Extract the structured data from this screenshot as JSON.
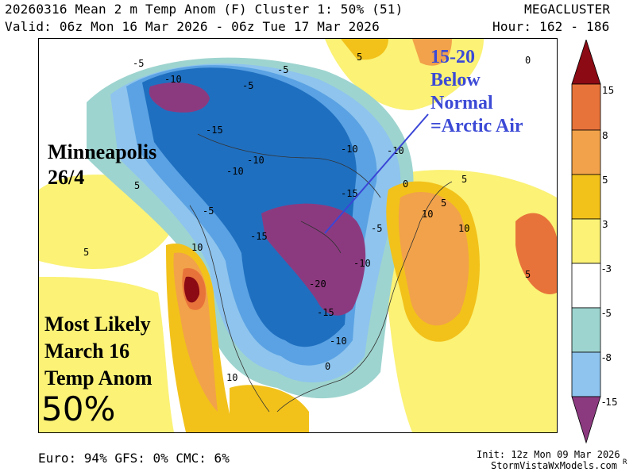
{
  "header": {
    "title_line": "20260316 Mean 2 m Temp Anom (F) Cluster 1: 50% (51)",
    "brand": "MEGACLUSTER",
    "valid_line": "Valid: 06z Mon 16 Mar 2026 - 06z Tue 17 Mar 2026",
    "hour_line": "Hour: 162 - 186"
  },
  "annotations": {
    "arrow_note_line1": "15-20",
    "arrow_note_line2": "Below",
    "arrow_note_line3": "Normal",
    "arrow_note_line4": "=Arctic Air",
    "city_line1": "Minneapolis",
    "city_line2": "26/4",
    "caption_line1": "Most Likely",
    "caption_line2": "March 16",
    "caption_line3": "Temp Anom",
    "probability": "50%"
  },
  "contour_labels": [
    "-5",
    "0",
    "-5",
    "-5",
    "-10",
    "-15",
    "-10",
    "-10",
    "-15",
    "-10",
    "-10",
    "5",
    "-5",
    "0",
    "5",
    "-15",
    "-10",
    "10",
    "-20",
    "-15",
    "-10",
    "-5",
    "10",
    "5",
    "10",
    "10",
    "5",
    "0",
    "5",
    "5"
  ],
  "footer": {
    "models": "Euro: 94% GFS: 0% CMC: 6%",
    "init": "Init: 12z Mon 09 Mar 2026",
    "site": "StormVistaWxModels.com",
    "mark": "R"
  },
  "colorbar": {
    "labels": [
      "15",
      "8",
      "5",
      "3",
      "-3",
      "-5",
      "-8",
      "-15"
    ],
    "colors": [
      "#8b0a14",
      "#e8733a",
      "#f2a24a",
      "#f2c21a",
      "#fbf276",
      "#ffffff",
      "#9ed4cf",
      "#8ec4ee",
      "#5aa2e3",
      "#1f6fc0",
      "#8c3a80"
    ]
  }
}
